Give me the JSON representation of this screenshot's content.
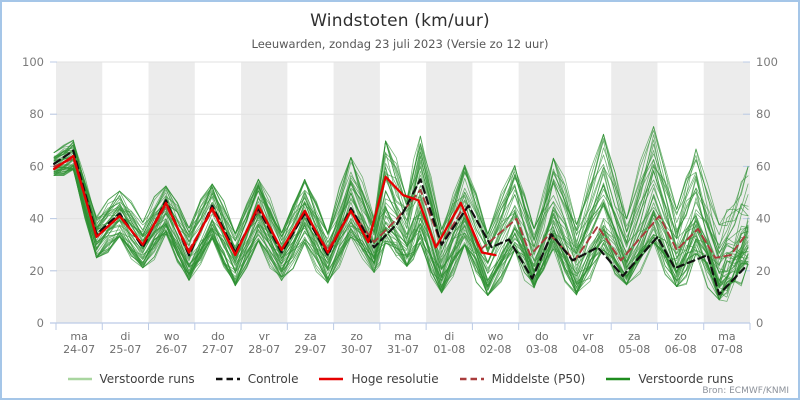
{
  "header": {
    "title": "Windstoten (km/uur)",
    "subtitle": "Leeuwarden, zondag 23 juli 2023 (Versie zo 12 uur)"
  },
  "footer": {
    "source": "Bron: ECMWF/KNMI"
  },
  "colors": {
    "frame_border": "#a5c6e8",
    "day_band_gray": "#ececec",
    "gridline": "#e2e2e2",
    "axis_line": "#bccbe6",
    "y_label": "#7b7b7b",
    "x_label": "#6e6e6e",
    "ensemble_green": "#2e9032",
    "control_black": "#111111",
    "hires_red": "#e60000",
    "median_darkred": "#a93c3c",
    "legend_light_green": "#a9d6a0",
    "legend_dark_green": "#1e8c1e"
  },
  "legend": {
    "items": [
      {
        "label": "Verstoorde runs",
        "swatch": "solid",
        "color": "#a9d6a0"
      },
      {
        "label": "Controle",
        "swatch": "dashed",
        "color": "#111111"
      },
      {
        "label": "Hoge resolutie",
        "swatch": "solid",
        "color": "#e60000"
      },
      {
        "label": "Middelste (P50)",
        "swatch": "dashed",
        "color": "#a93c3c"
      },
      {
        "label": "Verstoorde runs",
        "swatch": "solid",
        "color": "#1e8c1e"
      }
    ]
  },
  "chart_data": {
    "type": "line",
    "title": "Windstoten (km/uur)",
    "ylabel": "km/uur",
    "ylim": [
      0,
      100
    ],
    "y_ticks": [
      0,
      20,
      40,
      60,
      80,
      100
    ],
    "y_axis_sides": [
      "left",
      "right"
    ],
    "grid": true,
    "time_unit": "hours since 2023-07-23 12:00",
    "x_range_hours": [
      11,
      372
    ],
    "days": [
      {
        "weekday": "ma",
        "date": "24-07",
        "shaded": true
      },
      {
        "weekday": "di",
        "date": "25-07",
        "shaded": false
      },
      {
        "weekday": "wo",
        "date": "26-07",
        "shaded": true
      },
      {
        "weekday": "do",
        "date": "27-07",
        "shaded": false
      },
      {
        "weekday": "vr",
        "date": "28-07",
        "shaded": true
      },
      {
        "weekday": "za",
        "date": "29-07",
        "shaded": false
      },
      {
        "weekday": "zo",
        "date": "30-07",
        "shaded": true
      },
      {
        "weekday": "ma",
        "date": "31-07",
        "shaded": false
      },
      {
        "weekday": "di",
        "date": "01-08",
        "shaded": true
      },
      {
        "weekday": "wo",
        "date": "02-08",
        "shaded": false
      },
      {
        "weekday": "do",
        "date": "03-08",
        "shaded": true
      },
      {
        "weekday": "vr",
        "date": "04-08",
        "shaded": false
      },
      {
        "weekday": "za",
        "date": "05-08",
        "shaded": true
      },
      {
        "weekday": "zo",
        "date": "06-08",
        "shaded": false
      },
      {
        "weekday": "ma",
        "date": "07-08",
        "shaded": true
      }
    ],
    "series": [
      {
        "name": "Hoge resolutie",
        "style": "solid",
        "color": "#e60000",
        "width": 2.3,
        "points": [
          [
            11,
            59
          ],
          [
            21,
            64
          ],
          [
            33,
            33
          ],
          [
            45,
            41
          ],
          [
            57,
            30
          ],
          [
            69,
            46
          ],
          [
            81,
            27
          ],
          [
            93,
            44
          ],
          [
            105,
            26
          ],
          [
            117,
            45
          ],
          [
            129,
            28
          ],
          [
            141,
            43
          ],
          [
            153,
            27
          ],
          [
            165,
            43
          ],
          [
            174,
            31
          ],
          [
            183,
            56
          ],
          [
            192,
            49
          ],
          [
            200,
            47
          ],
          [
            209,
            29
          ],
          [
            222,
            46
          ],
          [
            233,
            27
          ],
          [
            240,
            26
          ]
        ]
      },
      {
        "name": "Controle",
        "style": "dashed",
        "color": "#111111",
        "width": 2.2,
        "points": [
          [
            11,
            61
          ],
          [
            21,
            66
          ],
          [
            33,
            34
          ],
          [
            45,
            42
          ],
          [
            57,
            29
          ],
          [
            69,
            47
          ],
          [
            81,
            26
          ],
          [
            93,
            45
          ],
          [
            105,
            27
          ],
          [
            117,
            44
          ],
          [
            129,
            27
          ],
          [
            141,
            42
          ],
          [
            153,
            26
          ],
          [
            165,
            44
          ],
          [
            177,
            29
          ],
          [
            189,
            38
          ],
          [
            201,
            55
          ],
          [
            212,
            30
          ],
          [
            226,
            45
          ],
          [
            238,
            29
          ],
          [
            247,
            32
          ],
          [
            259,
            17
          ],
          [
            269,
            34
          ],
          [
            280,
            24
          ],
          [
            293,
            29
          ],
          [
            306,
            18
          ],
          [
            324,
            33
          ],
          [
            333,
            21
          ],
          [
            350,
            26
          ],
          [
            356,
            11
          ],
          [
            369,
            21
          ]
        ]
      },
      {
        "name": "Middelste (P50)",
        "style": "dashed",
        "color": "#a93c3c",
        "width": 1.9,
        "points": [
          [
            11,
            60
          ],
          [
            21,
            63
          ],
          [
            33,
            33
          ],
          [
            45,
            41
          ],
          [
            57,
            30
          ],
          [
            69,
            45
          ],
          [
            81,
            28
          ],
          [
            93,
            43
          ],
          [
            105,
            27
          ],
          [
            117,
            43
          ],
          [
            129,
            28
          ],
          [
            141,
            42
          ],
          [
            153,
            28
          ],
          [
            165,
            43
          ],
          [
            177,
            31
          ],
          [
            189,
            40
          ],
          [
            201,
            51
          ],
          [
            212,
            30
          ],
          [
            223,
            44
          ],
          [
            232,
            28
          ],
          [
            251,
            40
          ],
          [
            258,
            26
          ],
          [
            268,
            34
          ],
          [
            281,
            24
          ],
          [
            293,
            37
          ],
          [
            305,
            24
          ],
          [
            325,
            41
          ],
          [
            334,
            28
          ],
          [
            345,
            36
          ],
          [
            354,
            25
          ],
          [
            362,
            26
          ],
          [
            369,
            33
          ]
        ]
      }
    ],
    "ensemble": {
      "name": "Verstoorde runs",
      "n_members": 50,
      "color": "#2e9032",
      "opacity": 0.65,
      "seed": 7,
      "envelope_t_lo_hi": [
        [
          11,
          56,
          66
        ],
        [
          21,
          58,
          71
        ],
        [
          33,
          24,
          42
        ],
        [
          45,
          32,
          52
        ],
        [
          57,
          20,
          40
        ],
        [
          69,
          33,
          54
        ],
        [
          81,
          15,
          38
        ],
        [
          93,
          31,
          55
        ],
        [
          105,
          13,
          36
        ],
        [
          117,
          30,
          57
        ],
        [
          129,
          15,
          36
        ],
        [
          141,
          29,
          57
        ],
        [
          153,
          14,
          36
        ],
        [
          165,
          31,
          66
        ],
        [
          177,
          18,
          42
        ],
        [
          183,
          28,
          73
        ],
        [
          194,
          20,
          50
        ],
        [
          201,
          28,
          75
        ],
        [
          212,
          10,
          38
        ],
        [
          224,
          28,
          63
        ],
        [
          236,
          9,
          36
        ],
        [
          250,
          26,
          63
        ],
        [
          260,
          12,
          38
        ],
        [
          270,
          26,
          66
        ],
        [
          282,
          9,
          40
        ],
        [
          296,
          25,
          76
        ],
        [
          308,
          13,
          42
        ],
        [
          322,
          28,
          79
        ],
        [
          334,
          12,
          46
        ],
        [
          344,
          24,
          70
        ],
        [
          356,
          7,
          40
        ],
        [
          364,
          14,
          48
        ],
        [
          371,
          20,
          63
        ]
      ]
    }
  }
}
